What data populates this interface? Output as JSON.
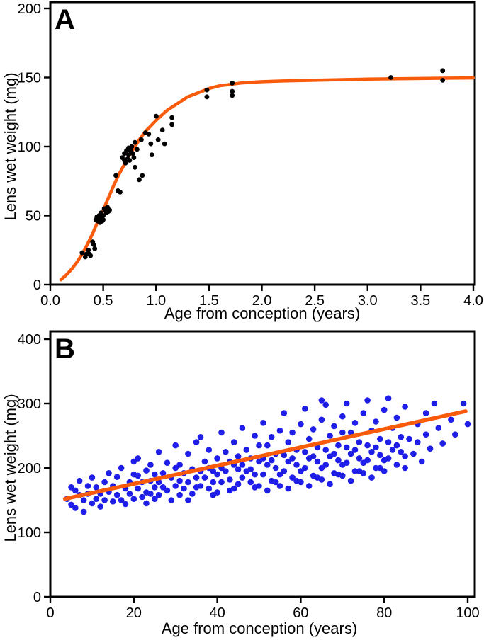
{
  "figure": {
    "background": "#FFFFFF",
    "axis_color": "#000000"
  },
  "chart_data": [
    {
      "type": "scatter",
      "panel_label": "A",
      "xlabel": "Age from conception (years)",
      "ylabel": "Lens wet weight (mg)",
      "xlim": [
        0,
        4
      ],
      "ylim": [
        0,
        200
      ],
      "grid": false,
      "legend": null,
      "xticks": {
        "values": [
          0,
          0.5,
          1.0,
          1.5,
          2.0,
          2.5,
          3.0,
          3.5,
          4.0
        ],
        "labels": [
          "0.0",
          "0.5",
          "1.0",
          "1.5",
          "2.0",
          "2.5",
          "3.0",
          "3.5",
          "4.0"
        ]
      },
      "yticks": {
        "values": [
          0,
          50,
          100,
          150,
          200
        ],
        "labels": [
          "0",
          "50",
          "100",
          "150",
          "200"
        ]
      },
      "point_color": "#000000",
      "fit_color": "#F95B0D",
      "fit_type": "sigmoid-growth-curve",
      "points": [
        [
          0.3,
          23
        ],
        [
          0.33,
          20
        ],
        [
          0.34,
          22
        ],
        [
          0.36,
          25
        ],
        [
          0.37,
          22
        ],
        [
          0.38,
          21
        ],
        [
          0.4,
          31
        ],
        [
          0.41,
          29
        ],
        [
          0.42,
          26
        ],
        [
          0.43,
          47
        ],
        [
          0.44,
          49
        ],
        [
          0.45,
          46
        ],
        [
          0.46,
          50
        ],
        [
          0.47,
          45
        ],
        [
          0.47,
          48
        ],
        [
          0.48,
          52
        ],
        [
          0.49,
          46
        ],
        [
          0.5,
          50
        ],
        [
          0.5,
          47
        ],
        [
          0.51,
          55
        ],
        [
          0.52,
          54
        ],
        [
          0.53,
          52
        ],
        [
          0.54,
          56
        ],
        [
          0.55,
          53
        ],
        [
          0.56,
          54
        ],
        [
          0.62,
          79
        ],
        [
          0.64,
          68
        ],
        [
          0.66,
          67
        ],
        [
          0.68,
          92
        ],
        [
          0.7,
          90
        ],
        [
          0.7,
          95
        ],
        [
          0.71,
          88
        ],
        [
          0.72,
          97
        ],
        [
          0.73,
          91
        ],
        [
          0.74,
          99
        ],
        [
          0.74,
          94
        ],
        [
          0.75,
          90
        ],
        [
          0.76,
          97
        ],
        [
          0.77,
          100
        ],
        [
          0.78,
          95
        ],
        [
          0.79,
          92
        ],
        [
          0.8,
          103
        ],
        [
          0.8,
          85
        ],
        [
          0.82,
          98
        ],
        [
          0.84,
          76
        ],
        [
          0.87,
          79
        ],
        [
          0.86,
          105
        ],
        [
          0.9,
          110
        ],
        [
          0.93,
          109
        ],
        [
          0.95,
          102
        ],
        [
          0.96,
          94
        ],
        [
          1.0,
          122
        ],
        [
          1.02,
          105
        ],
        [
          1.06,
          112
        ],
        [
          1.08,
          102
        ],
        [
          1.15,
          121
        ],
        [
          1.15,
          116
        ],
        [
          1.48,
          141
        ],
        [
          1.48,
          136
        ],
        [
          1.72,
          146
        ],
        [
          1.72,
          140
        ],
        [
          1.72,
          137
        ],
        [
          3.22,
          150
        ],
        [
          3.71,
          155
        ],
        [
          3.71,
          148
        ]
      ],
      "fit": [
        [
          0.1,
          3.5
        ],
        [
          0.15,
          7
        ],
        [
          0.2,
          11
        ],
        [
          0.25,
          16
        ],
        [
          0.3,
          22
        ],
        [
          0.35,
          29
        ],
        [
          0.4,
          37
        ],
        [
          0.45,
          46
        ],
        [
          0.5,
          54
        ],
        [
          0.55,
          63
        ],
        [
          0.6,
          72
        ],
        [
          0.65,
          80
        ],
        [
          0.7,
          87
        ],
        [
          0.75,
          94
        ],
        [
          0.8,
          100
        ],
        [
          0.85,
          106
        ],
        [
          0.9,
          111
        ],
        [
          0.95,
          115
        ],
        [
          1.0,
          119
        ],
        [
          1.1,
          126
        ],
        [
          1.2,
          131
        ],
        [
          1.3,
          136
        ],
        [
          1.4,
          139
        ],
        [
          1.5,
          142
        ],
        [
          1.6,
          144
        ],
        [
          1.7,
          145
        ],
        [
          1.8,
          146
        ],
        [
          2.0,
          147
        ],
        [
          2.2,
          147.5
        ],
        [
          2.5,
          148
        ],
        [
          2.8,
          148.5
        ],
        [
          3.0,
          148.8
        ],
        [
          3.2,
          149
        ],
        [
          3.5,
          149.3
        ],
        [
          3.7,
          149.5
        ],
        [
          4.0,
          149.7
        ]
      ]
    },
    {
      "type": "scatter",
      "panel_label": "B",
      "xlabel": "Age from conception (years)",
      "ylabel": "Lens wet weight (mg)",
      "xlim": [
        0,
        100
      ],
      "ylim": [
        0,
        400
      ],
      "grid": false,
      "legend": null,
      "xticks": {
        "values": [
          0,
          20,
          40,
          60,
          80,
          100
        ],
        "labels": [
          "0",
          "20",
          "40",
          "60",
          "80",
          "100"
        ]
      },
      "yticks": {
        "values": [
          0,
          100,
          200,
          300,
          400
        ],
        "labels": [
          "0",
          "100",
          "200",
          "300",
          "400"
        ]
      },
      "point_color": "#1E1EE8",
      "fit_color": "#F95B0D",
      "fit_type": "linear-regression",
      "points": [
        [
          4,
          152
        ],
        [
          5,
          170
        ],
        [
          5,
          143
        ],
        [
          6,
          165
        ],
        [
          6,
          138
        ],
        [
          7,
          158
        ],
        [
          7,
          180
        ],
        [
          8,
          150
        ],
        [
          8,
          132
        ],
        [
          9,
          172
        ],
        [
          9,
          160
        ],
        [
          10,
          145
        ],
        [
          10,
          185
        ],
        [
          11,
          152
        ],
        [
          11,
          170
        ],
        [
          12,
          160
        ],
        [
          12,
          140
        ],
        [
          13,
          178
        ],
        [
          13,
          150
        ],
        [
          14,
          192
        ],
        [
          14,
          163
        ],
        [
          15,
          148
        ],
        [
          15,
          172
        ],
        [
          16,
          158
        ],
        [
          16,
          186
        ],
        [
          17,
          150
        ],
        [
          17,
          200
        ],
        [
          18,
          168
        ],
        [
          18,
          144
        ],
        [
          19,
          178
        ],
        [
          19,
          160
        ],
        [
          20,
          190
        ],
        [
          20,
          152
        ],
        [
          20,
          210
        ],
        [
          21,
          168
        ],
        [
          21,
          188
        ],
        [
          21,
          215
        ],
        [
          22,
          155
        ],
        [
          22,
          178
        ],
        [
          23,
          196
        ],
        [
          23,
          162
        ],
        [
          23,
          145
        ],
        [
          24,
          180
        ],
        [
          24,
          205
        ],
        [
          24,
          160
        ],
        [
          25,
          170
        ],
        [
          25,
          152
        ],
        [
          25,
          190
        ],
        [
          26,
          178
        ],
        [
          26,
          158
        ],
        [
          26,
          225
        ],
        [
          27,
          192
        ],
        [
          27,
          170
        ],
        [
          28,
          208
        ],
        [
          28,
          165
        ],
        [
          29,
          185
        ],
        [
          29,
          150
        ],
        [
          30,
          200
        ],
        [
          30,
          172
        ],
        [
          30,
          235
        ],
        [
          31,
          180
        ],
        [
          31,
          205
        ],
        [
          31,
          158
        ],
        [
          32,
          168
        ],
        [
          32,
          192
        ],
        [
          33,
          178
        ],
        [
          33,
          222
        ],
        [
          33,
          150
        ],
        [
          34,
          160
        ],
        [
          34,
          198
        ],
        [
          35,
          185
        ],
        [
          35,
          170
        ],
        [
          35,
          240
        ],
        [
          36,
          195
        ],
        [
          36,
          172
        ],
        [
          36,
          248
        ],
        [
          37,
          210
        ],
        [
          37,
          185
        ],
        [
          38,
          168
        ],
        [
          38,
          228
        ],
        [
          38,
          200
        ],
        [
          39,
          195
        ],
        [
          39,
          178
        ],
        [
          39,
          158
        ],
        [
          40,
          215
        ],
        [
          40,
          190
        ],
        [
          40,
          162
        ],
        [
          41,
          200
        ],
        [
          41,
          178
        ],
        [
          41,
          255
        ],
        [
          42,
          225
        ],
        [
          42,
          195
        ],
        [
          43,
          182
        ],
        [
          43,
          210
        ],
        [
          43,
          165
        ],
        [
          44,
          168
        ],
        [
          44,
          240
        ],
        [
          44,
          205
        ],
        [
          45,
          198
        ],
        [
          45,
          218
        ],
        [
          45,
          175
        ],
        [
          46,
          205
        ],
        [
          46,
          185
        ],
        [
          46,
          262
        ],
        [
          47,
          228
        ],
        [
          47,
          195
        ],
        [
          48,
          178
        ],
        [
          48,
          215
        ],
        [
          48,
          198
        ],
        [
          49,
          250
        ],
        [
          49,
          190
        ],
        [
          49,
          170
        ],
        [
          50,
          210
        ],
        [
          50,
          172
        ],
        [
          50,
          235
        ],
        [
          51,
          215
        ],
        [
          51,
          190
        ],
        [
          51,
          270
        ],
        [
          52,
          235
        ],
        [
          52,
          205
        ],
        [
          52,
          165
        ],
        [
          53,
          180
        ],
        [
          53,
          248
        ],
        [
          53,
          212
        ],
        [
          54,
          200
        ],
        [
          54,
          222
        ],
        [
          54,
          178
        ],
        [
          55,
          190
        ],
        [
          55,
          258
        ],
        [
          55,
          172
        ],
        [
          56,
          220
        ],
        [
          56,
          195
        ],
        [
          56,
          285
        ],
        [
          57,
          240
        ],
        [
          57,
          210
        ],
        [
          57,
          168
        ],
        [
          58,
          185
        ],
        [
          58,
          255
        ],
        [
          58,
          215
        ],
        [
          59,
          205
        ],
        [
          59,
          228
        ],
        [
          59,
          180
        ],
        [
          60,
          195
        ],
        [
          60,
          268
        ],
        [
          60,
          178
        ],
        [
          61,
          225
        ],
        [
          61,
          200
        ],
        [
          61,
          292
        ],
        [
          62,
          245
        ],
        [
          62,
          215
        ],
        [
          62,
          172
        ],
        [
          63,
          188
        ],
        [
          63,
          260
        ],
        [
          63,
          218
        ],
        [
          64,
          210
        ],
        [
          64,
          232
        ],
        [
          64,
          185
        ],
        [
          65,
          200
        ],
        [
          65,
          275
        ],
        [
          65,
          182
        ],
        [
          65,
          305
        ],
        [
          66,
          228
        ],
        [
          66,
          205
        ],
        [
          66,
          298
        ],
        [
          67,
          250
        ],
        [
          67,
          218
        ],
        [
          67,
          175
        ],
        [
          68,
          192
        ],
        [
          68,
          265
        ],
        [
          68,
          222
        ],
        [
          69,
          212
        ],
        [
          69,
          235
        ],
        [
          69,
          190
        ],
        [
          70,
          205
        ],
        [
          70,
          280
        ],
        [
          70,
          188
        ],
        [
          70,
          255
        ],
        [
          71,
          232
        ],
        [
          71,
          208
        ],
        [
          71,
          300
        ],
        [
          72,
          255
        ],
        [
          72,
          222
        ],
        [
          72,
          180
        ],
        [
          73,
          195
        ],
        [
          73,
          270
        ],
        [
          73,
          228
        ],
        [
          74,
          215
        ],
        [
          74,
          240
        ],
        [
          74,
          195
        ],
        [
          75,
          208
        ],
        [
          75,
          285
        ],
        [
          75,
          192
        ],
        [
          76,
          235
        ],
        [
          76,
          212
        ],
        [
          76,
          305
        ],
        [
          77,
          258
        ],
        [
          77,
          225
        ],
        [
          77,
          185
        ],
        [
          78,
          200
        ],
        [
          78,
          272
        ],
        [
          78,
          232
        ],
        [
          79,
          220
        ],
        [
          79,
          245
        ],
        [
          79,
          200
        ],
        [
          80,
          212
        ],
        [
          80,
          290
        ],
        [
          80,
          195
        ],
        [
          81,
          240
        ],
        [
          81,
          215
        ],
        [
          81,
          308
        ],
        [
          82,
          262
        ],
        [
          82,
          228
        ],
        [
          83,
          205
        ],
        [
          83,
          278
        ],
        [
          83,
          235
        ],
        [
          84,
          225
        ],
        [
          84,
          248
        ],
        [
          85,
          218
        ],
        [
          85,
          295
        ],
        [
          85,
          200
        ],
        [
          86,
          245
        ],
        [
          87,
          222
        ],
        [
          88,
          268
        ],
        [
          88,
          240
        ],
        [
          89,
          210
        ],
        [
          90,
          285
        ],
        [
          90,
          252
        ],
        [
          91,
          230
        ],
        [
          92,
          300
        ],
        [
          93,
          262
        ],
        [
          94,
          238
        ],
        [
          96,
          275
        ],
        [
          97,
          252
        ],
        [
          99,
          300
        ],
        [
          100,
          268
        ]
      ],
      "fit": [
        [
          3.5,
          152
        ],
        [
          99.5,
          288
        ]
      ]
    }
  ]
}
